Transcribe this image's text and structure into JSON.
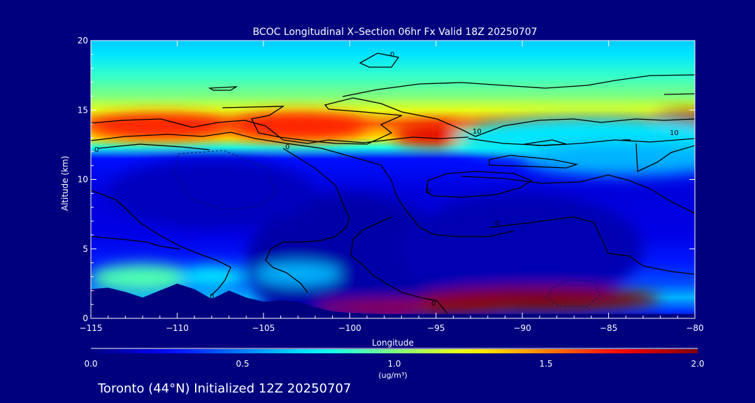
{
  "chart_data": {
    "type": "heatmap",
    "title": "BCOC Longitudinal X–Section 06hr  Fx Valid 18Z 20250707",
    "xlabel": "Longitude",
    "ylabel": "Altitude (km)",
    "xlim": [
      -115,
      -80
    ],
    "ylim": [
      0,
      20
    ],
    "x_ticks": [
      -115,
      -110,
      -105,
      -100,
      -95,
      -90,
      -85,
      -80
    ],
    "x_tick_labels": [
      "−115",
      "−110",
      "−105",
      "−100",
      "−95",
      "−90",
      "−85",
      "−80"
    ],
    "y_ticks": [
      0,
      5,
      10,
      15,
      20
    ],
    "y_tick_labels": [
      "0",
      "5",
      "10",
      "15",
      "20"
    ],
    "colorbar": {
      "min": 0.0,
      "max": 2.0,
      "ticks": [
        0.0,
        0.5,
        1.0,
        1.5,
        2.0
      ],
      "tick_labels": [
        "0.0",
        "0.5",
        "1.0",
        "1.5",
        "2.0"
      ],
      "unit_label": "(ug/m³)",
      "colormap": "jet"
    },
    "contour_labels": [
      "0",
      "0",
      "0",
      "0",
      "0",
      "0",
      "0",
      "10",
      "10"
    ],
    "subtitle": "Toronto (44°N) Initialized 12Z 20250707",
    "terrain_km": [
      [
        -115,
        2.1
      ],
      [
        -114,
        2.2
      ],
      [
        -113,
        1.9
      ],
      [
        -112,
        1.5
      ],
      [
        -111,
        2.0
      ],
      [
        -110,
        2.5
      ],
      [
        -109,
        2.1
      ],
      [
        -108,
        1.4
      ],
      [
        -107,
        2.0
      ],
      [
        -106,
        1.5
      ],
      [
        -105,
        1.2
      ],
      [
        -104,
        1.3
      ],
      [
        -103,
        1.2
      ],
      [
        -102,
        0.8
      ],
      [
        -101,
        0.5
      ],
      [
        -100,
        0.4
      ],
      [
        -99,
        0.35
      ],
      [
        -98,
        0.3
      ],
      [
        -95,
        0.3
      ],
      [
        -90,
        0.3
      ],
      [
        -85,
        0.3
      ],
      [
        -80,
        0.3
      ]
    ],
    "bands": [
      {
        "alt": 0.0,
        "value": 0.05
      },
      {
        "alt": 0.5,
        "value": 0.35
      },
      {
        "alt": 1.5,
        "value": 0.6
      },
      {
        "alt": 2.5,
        "value": 0.4
      },
      {
        "alt": 4.0,
        "value": 0.3
      },
      {
        "alt": 6.0,
        "value": 0.2
      },
      {
        "alt": 9.0,
        "value": 0.18
      },
      {
        "alt": 11.5,
        "value": 0.28
      },
      {
        "alt": 12.3,
        "value": 0.8
      },
      {
        "alt": 13.0,
        "value": 1.3
      },
      {
        "alt": 14.0,
        "value": 1.55
      },
      {
        "alt": 15.0,
        "value": 1.2
      },
      {
        "alt": 16.0,
        "value": 1.0
      },
      {
        "alt": 17.5,
        "value": 0.85
      },
      {
        "alt": 19.0,
        "value": 0.7
      },
      {
        "alt": 20.0,
        "value": 0.65
      }
    ],
    "blobs": [
      {
        "lon": -111,
        "alt": 13.8,
        "rx_deg": 4,
        "ry_km": 0.9,
        "value": 1.68
      },
      {
        "lon": -103,
        "alt": 13.8,
        "rx_deg": 4,
        "ry_km": 1.0,
        "value": 1.68
      },
      {
        "lon": -95,
        "alt": 13.2,
        "rx_deg": 2.5,
        "ry_km": 0.8,
        "value": 1.8
      },
      {
        "lon": -80.5,
        "alt": 14.3,
        "rx_deg": 2,
        "ry_km": 0.6,
        "value": 1.98
      },
      {
        "lon": -86,
        "alt": 13.0,
        "rx_deg": 8,
        "ry_km": 1.5,
        "value": 0.7
      },
      {
        "lon": -84,
        "alt": 11.5,
        "rx_deg": 6,
        "ry_km": 1.2,
        "value": 0.6
      },
      {
        "lon": -100,
        "alt": 4.0,
        "rx_deg": 6,
        "ry_km": 5,
        "value": 0.08
      },
      {
        "lon": -90,
        "alt": 5.0,
        "rx_deg": 7,
        "ry_km": 4,
        "value": 0.1
      },
      {
        "lon": -108,
        "alt": 9.0,
        "rx_deg": 6,
        "ry_km": 2.5,
        "value": 0.12
      },
      {
        "lon": -89,
        "alt": 1.4,
        "rx_deg": 7,
        "ry_km": 0.9,
        "value": 2.0
      },
      {
        "lon": -96,
        "alt": 0.8,
        "rx_deg": 6,
        "ry_km": 0.5,
        "value": 1.95
      },
      {
        "lon": -112,
        "alt": 2.9,
        "rx_deg": 3,
        "ry_km": 1.0,
        "value": 0.9
      },
      {
        "lon": -108,
        "alt": 3.0,
        "rx_deg": 2,
        "ry_km": 0.8,
        "value": 0.7
      },
      {
        "lon": -103,
        "alt": 3.2,
        "rx_deg": 2.5,
        "ry_km": 0.8,
        "value": 0.6
      }
    ]
  }
}
